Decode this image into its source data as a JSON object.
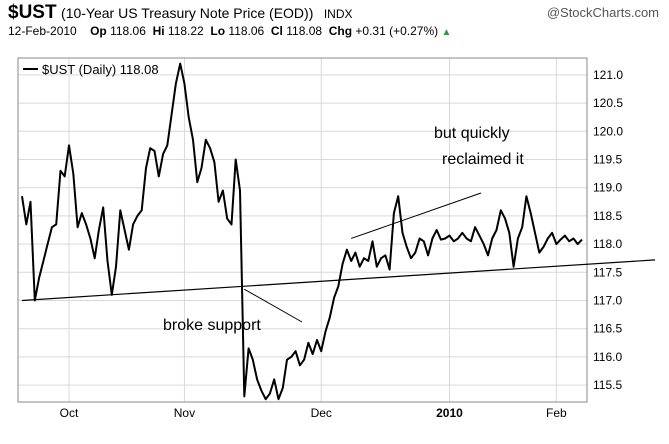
{
  "header": {
    "symbol": "$UST",
    "description": "(10-Year US Treasury Note Price (EOD))",
    "exchange": "INDX",
    "brand": "@StockCharts.com",
    "date": "12-Feb-2010",
    "op_label": "Op",
    "op": "118.06",
    "hi_label": "Hi",
    "hi": "118.22",
    "lo_label": "Lo",
    "lo": "118.06",
    "cl_label": "Cl",
    "cl": "118.08",
    "chg_label": "Chg",
    "chg": "+0.31 (+0.27%)"
  },
  "chart_data": {
    "type": "line",
    "legend": "$UST (Daily) 118.08",
    "legend_position": "top-left",
    "ylim": [
      115.2,
      121.3
    ],
    "y_ticks": [
      115.5,
      116.0,
      116.5,
      117.0,
      117.5,
      118.0,
      118.5,
      119.0,
      119.5,
      120.0,
      120.5,
      121.0
    ],
    "y_tick_labels": [
      "115.5",
      "116.0",
      "116.5",
      "117.0",
      "117.5",
      "118.0",
      "118.5",
      "119.0",
      "119.5",
      "120.0",
      "120.5",
      "121.0"
    ],
    "x_ticks": [
      11,
      38,
      70,
      100,
      125
    ],
    "x_tick_labels": [
      "Oct",
      "Nov",
      "Dec",
      "2010",
      "Feb"
    ],
    "grid": true,
    "series": [
      {
        "x": [
          0,
          1,
          2,
          3,
          4,
          5,
          6,
          7,
          8,
          9,
          10,
          11,
          12,
          13,
          14,
          15,
          16,
          17,
          18,
          19,
          20,
          21,
          22,
          23,
          24,
          25,
          26,
          27,
          28,
          29,
          30,
          31,
          32,
          33,
          34,
          35,
          36,
          37,
          38,
          39,
          40,
          41,
          42,
          43,
          44,
          45,
          46,
          47,
          48,
          49,
          50,
          51,
          52,
          53,
          54,
          55,
          56,
          57,
          58,
          59,
          60,
          61,
          62,
          63,
          64,
          65,
          66,
          67,
          68,
          69,
          70,
          71,
          72,
          73,
          74,
          75,
          76,
          77,
          78,
          79,
          80,
          81,
          82,
          83,
          84,
          85,
          86,
          87,
          88,
          89,
          90,
          91,
          92,
          93,
          94,
          95,
          96,
          97,
          98,
          99,
          100,
          101,
          102,
          103,
          104,
          105,
          106,
          107,
          108,
          109,
          110,
          111,
          112,
          113,
          114,
          115,
          116,
          117,
          118,
          119,
          120,
          121,
          122,
          123,
          124,
          125,
          126,
          127,
          128,
          129,
          130,
          131
        ],
        "values": [
          118.85,
          118.35,
          118.75,
          117.0,
          117.4,
          117.7,
          118.0,
          118.3,
          118.35,
          119.3,
          119.2,
          119.75,
          119.25,
          118.3,
          118.55,
          118.35,
          118.1,
          117.75,
          118.25,
          118.65,
          117.7,
          117.1,
          117.6,
          118.6,
          118.25,
          117.9,
          118.35,
          118.5,
          118.6,
          119.35,
          119.7,
          119.65,
          119.2,
          119.6,
          119.75,
          120.3,
          120.85,
          121.2,
          120.85,
          120.25,
          119.85,
          119.1,
          119.35,
          119.85,
          119.7,
          119.45,
          118.75,
          118.95,
          118.45,
          118.35,
          119.5,
          118.95,
          115.3,
          116.15,
          115.95,
          115.6,
          115.4,
          115.25,
          115.35,
          115.6,
          115.25,
          115.45,
          115.95,
          116.0,
          116.1,
          115.85,
          115.95,
          116.25,
          116.05,
          116.3,
          116.1,
          116.45,
          116.7,
          117.05,
          117.25,
          117.65,
          117.9,
          117.7,
          117.85,
          117.6,
          117.75,
          117.7,
          118.05,
          117.6,
          117.75,
          117.8,
          117.55,
          118.55,
          118.85,
          118.2,
          117.95,
          117.75,
          117.85,
          118.1,
          118.05,
          117.8,
          118.1,
          118.25,
          118.08,
          118.1,
          118.15,
          118.05,
          118.1,
          118.2,
          118.1,
          118.05,
          118.3,
          118.15,
          118.0,
          117.8,
          118.1,
          118.25,
          118.6,
          118.45,
          118.2,
          117.6,
          118.1,
          118.3,
          118.85,
          118.55,
          118.2,
          117.85,
          117.95,
          118.1,
          118.2,
          118.0,
          118.08,
          118.15,
          118.05,
          118.1,
          118.0,
          118.08
        ]
      }
    ],
    "annotations": [
      {
        "text": "broke support"
      },
      {
        "text": "but quickly"
      },
      {
        "text": "reclaimed it"
      }
    ]
  }
}
